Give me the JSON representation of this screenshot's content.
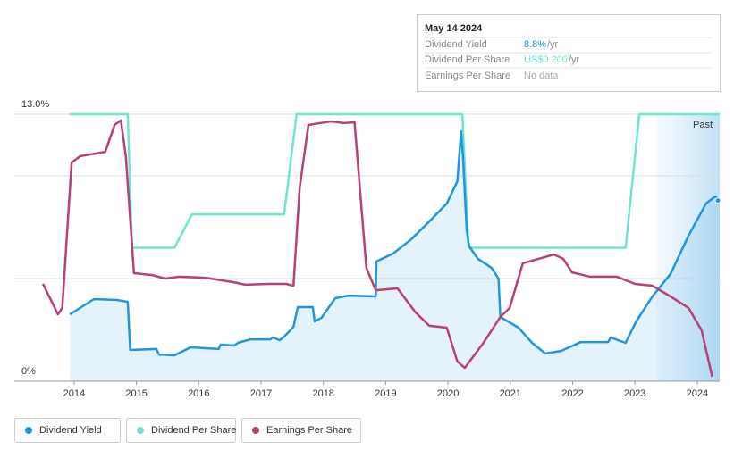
{
  "chart_data": {
    "type": "line",
    "xlim": [
      2013.04,
      2024.36
    ],
    "xticks": [
      2014,
      2015,
      2016,
      2017,
      2018,
      2019,
      2020,
      2021,
      2022,
      2023,
      2024
    ],
    "ylim": [
      0,
      13
    ],
    "yticks": [
      {
        "value": 0,
        "label": "0%"
      },
      {
        "value": 5,
        "label": null
      },
      {
        "value": 10,
        "label": null
      },
      {
        "value": 13,
        "label": "13.0%"
      }
    ],
    "y2lim": [
      0,
      0.2
    ],
    "grid": true,
    "past_label": "Past",
    "past_start": 2023.35,
    "series": [
      {
        "name": "Dividend Yield",
        "color": "#2394df",
        "fill": true,
        "x": [
          2013.93,
          2014.32,
          2014.67,
          2014.86,
          2014.9,
          2015.32,
          2015.36,
          2015.61,
          2015.87,
          2016.32,
          2016.35,
          2016.57,
          2016.63,
          2016.83,
          2017.15,
          2017.19,
          2017.3,
          2017.37,
          2017.52,
          2017.59,
          2017.83,
          2017.86,
          2017.97,
          2018.19,
          2018.4,
          2018.84,
          2018.85,
          2019.12,
          2019.41,
          2019.7,
          2019.98,
          2020.15,
          2020.21,
          2020.24,
          2020.3,
          2020.34,
          2020.48,
          2020.7,
          2020.81,
          2020.84,
          2021.13,
          2021.35,
          2021.56,
          2021.82,
          2022.13,
          2022.57,
          2022.61,
          2022.85,
          2023.02,
          2023.28,
          2023.57,
          2023.86,
          2024.14,
          2024.29,
          2024.36
        ],
        "values": [
          3.26,
          4.0,
          3.96,
          3.87,
          1.52,
          1.57,
          1.3,
          1.26,
          1.65,
          1.57,
          1.78,
          1.74,
          1.87,
          2.04,
          2.04,
          2.13,
          2.0,
          2.17,
          2.65,
          3.61,
          3.61,
          2.91,
          3.09,
          4.04,
          4.17,
          4.13,
          5.83,
          6.22,
          6.91,
          7.78,
          8.65,
          9.74,
          12.17,
          10.96,
          7.35,
          6.57,
          5.96,
          5.52,
          5.0,
          3.13,
          2.61,
          1.87,
          1.35,
          1.48,
          1.91,
          1.91,
          2.13,
          1.87,
          2.91,
          4.13,
          5.22,
          7.09,
          8.65,
          9.0,
          8.8
        ]
      },
      {
        "name": "Dividend Per Share",
        "color": "#6ee5d1",
        "axis": "y2",
        "x": [
          2013.93,
          2014.86,
          2014.93,
          2015.61,
          2015.89,
          2017.37,
          2017.57,
          2020.23,
          2020.33,
          2022.85,
          2023.07,
          2024.36
        ],
        "values": [
          0.2,
          0.2,
          0.1,
          0.1,
          0.125,
          0.125,
          0.2,
          0.2,
          0.1,
          0.1,
          0.2,
          0.2
        ]
      },
      {
        "name": "Earnings Per Share",
        "color": "#b83f78",
        "x": [
          2013.5,
          2013.74,
          2013.81,
          2013.96,
          2014.1,
          2014.5,
          2014.65,
          2014.75,
          2014.83,
          2014.96,
          2015.25,
          2015.46,
          2015.68,
          2016.11,
          2016.54,
          2016.75,
          2017.11,
          2017.4,
          2017.52,
          2017.62,
          2017.76,
          2018.12,
          2018.33,
          2018.5,
          2018.69,
          2018.84,
          2019.19,
          2019.48,
          2019.7,
          2019.98,
          2020.15,
          2020.27,
          2020.56,
          2020.84,
          2020.99,
          2021.2,
          2021.7,
          2021.85,
          2021.99,
          2022.28,
          2022.71,
          2023.0,
          2023.28,
          2023.57,
          2023.86,
          2024.07,
          2024.24
        ],
        "values": [
          4.74,
          3.26,
          3.57,
          10.65,
          10.96,
          11.17,
          12.48,
          12.7,
          10.96,
          5.26,
          5.17,
          5.0,
          5.09,
          5.04,
          4.83,
          4.7,
          4.74,
          4.74,
          4.65,
          9.43,
          12.48,
          12.65,
          12.57,
          12.61,
          5.52,
          4.43,
          4.52,
          3.35,
          2.7,
          2.61,
          0.96,
          0.65,
          1.83,
          3.13,
          3.57,
          5.74,
          6.17,
          5.96,
          5.3,
          5.09,
          5.09,
          4.74,
          4.65,
          4.13,
          3.57,
          2.48,
          0.22
        ]
      }
    ]
  },
  "tooltip": {
    "date": "May 14 2024",
    "rows": [
      {
        "label": "Dividend Yield",
        "value": "8.8%",
        "unit": "/yr"
      },
      {
        "label": "Dividend Per Share",
        "value": "US$0.200",
        "unit": "/yr"
      },
      {
        "label": "Earnings Per Share",
        "value": "No data"
      }
    ]
  }
}
